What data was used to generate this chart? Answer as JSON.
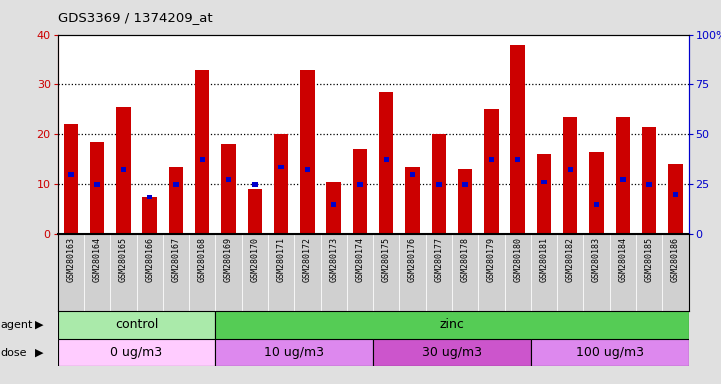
{
  "title": "GDS3369 / 1374209_at",
  "samples": [
    "GSM280163",
    "GSM280164",
    "GSM280165",
    "GSM280166",
    "GSM280167",
    "GSM280168",
    "GSM280169",
    "GSM280170",
    "GSM280171",
    "GSM280172",
    "GSM280173",
    "GSM280174",
    "GSM280175",
    "GSM280176",
    "GSM280177",
    "GSM280178",
    "GSM280179",
    "GSM280180",
    "GSM280181",
    "GSM280182",
    "GSM280183",
    "GSM280184",
    "GSM280185",
    "GSM280186"
  ],
  "count_values": [
    22,
    18.5,
    25.5,
    7.5,
    13.5,
    33,
    18,
    9,
    20,
    33,
    10.5,
    17,
    28.5,
    13.5,
    20,
    13,
    25,
    38,
    16,
    23.5,
    16.5,
    23.5,
    21.5,
    14
  ],
  "percentile_values": [
    12,
    10,
    13,
    7.5,
    10,
    15,
    11,
    10,
    13.5,
    13,
    6,
    10,
    15,
    12,
    10,
    10,
    15,
    15,
    10.5,
    13,
    6,
    11,
    10,
    8
  ],
  "bar_color": "#cc0000",
  "percentile_color": "#0000cc",
  "left_ylim": [
    0,
    40
  ],
  "right_ylim": [
    0,
    100
  ],
  "left_yticks": [
    0,
    10,
    20,
    30,
    40
  ],
  "right_yticks": [
    0,
    25,
    50,
    75,
    100
  ],
  "right_yticklabels": [
    "0",
    "25",
    "50",
    "75",
    "100%"
  ],
  "agent_groups": [
    {
      "label": "control",
      "start": 0,
      "end": 6,
      "color": "#aaeaaa"
    },
    {
      "label": "zinc",
      "start": 6,
      "end": 24,
      "color": "#55cc55"
    }
  ],
  "dose_groups": [
    {
      "label": "0 ug/m3",
      "start": 0,
      "end": 6,
      "color": "#ffccff"
    },
    {
      "label": "10 ug/m3",
      "start": 6,
      "end": 12,
      "color": "#dd88ee"
    },
    {
      "label": "30 ug/m3",
      "start": 12,
      "end": 18,
      "color": "#cc55cc"
    },
    {
      "label": "100 ug/m3",
      "start": 18,
      "end": 24,
      "color": "#dd88ee"
    }
  ],
  "fig_bg_color": "#e0e0e0",
  "plot_bg_color": "#ffffff",
  "axis_color_left": "#cc0000",
  "axis_color_right": "#0000cc",
  "xtick_bg_color": "#d0d0d0"
}
